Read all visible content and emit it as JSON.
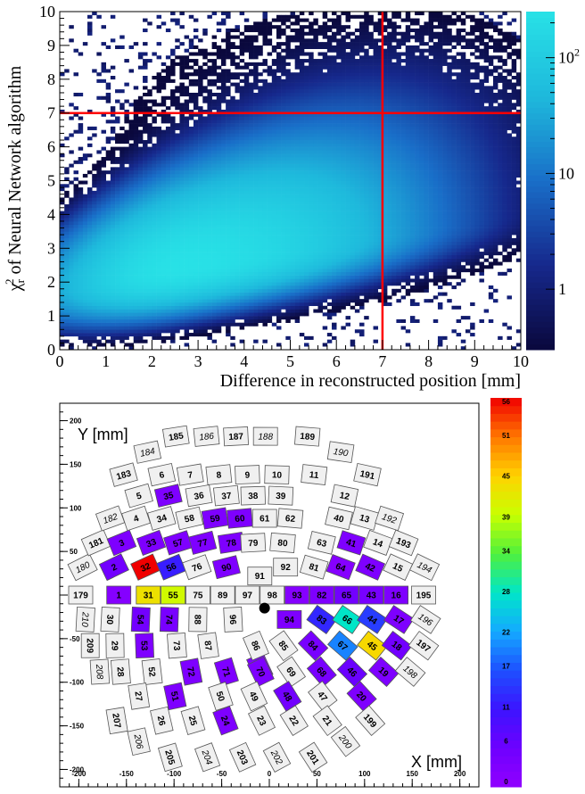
{
  "chart_data": [
    {
      "type": "heatmap",
      "xlabel": "Difference in reconstructed position [mm]",
      "ylabel_prefix": "χ",
      "ylabel_sub": "r",
      "ylabel_sup": "2",
      "ylabel_rest": " of  Neural Network algorithm",
      "xlim": [
        0,
        10
      ],
      "ylim": [
        0,
        10
      ],
      "x_ticks": [
        0,
        1,
        2,
        3,
        4,
        5,
        6,
        7,
        8,
        9,
        10
      ],
      "y_ticks": [
        0,
        1,
        2,
        3,
        4,
        5,
        6,
        7,
        8,
        9,
        10
      ],
      "log_color_scale": true,
      "z_range": [
        0.3,
        250
      ],
      "colorbar_ticks": [
        {
          "value": 1,
          "label": "1"
        },
        {
          "value": 10,
          "label": "10"
        },
        {
          "value": 100,
          "label": "10",
          "sup": "2"
        }
      ],
      "distribution": {
        "peak_x": 2.6,
        "peak_y": 2.4,
        "peak_density": 250
      },
      "cut_lines": {
        "x": 7,
        "y": 7,
        "color": "#ff0000"
      },
      "grid": false
    },
    {
      "type": "heatmap",
      "xlabel": "X [mm]",
      "ylabel": "Y [mm]",
      "xlim": [
        -220,
        220
      ],
      "ylim": [
        -220,
        220
      ],
      "x_ticks": [
        -200,
        -150,
        -100,
        -50,
        0,
        50,
        100,
        150,
        200
      ],
      "y_ticks": [
        -200,
        -150,
        -100,
        -50,
        0,
        50,
        100,
        150,
        200
      ],
      "colorbar_ticks": [
        0,
        6,
        11,
        17,
        22,
        28,
        34,
        39,
        45,
        51,
        56
      ],
      "z_range": [
        0,
        56
      ],
      "marker": {
        "x": -5,
        "y": -15
      },
      "rows": [
        {
          "y": 0,
          "cells": [
            {
              "id": "179",
              "x": -198,
              "v": null
            },
            {
              "id": "1",
              "x": -158,
              "v": 2
            },
            {
              "id": "31",
              "x": -127,
              "v": 43
            },
            {
              "id": "55",
              "x": -101,
              "v": 40
            },
            {
              "id": "75",
              "x": -75,
              "v": null
            },
            {
              "id": "89",
              "x": -49,
              "v": null
            },
            {
              "id": "97",
              "x": -23,
              "v": null
            },
            {
              "id": "98",
              "x": 3,
              "v": null
            },
            {
              "id": "93",
              "x": 29,
              "v": 2
            },
            {
              "id": "82",
              "x": 55,
              "v": 3
            },
            {
              "id": "65",
              "x": 81,
              "v": 5
            },
            {
              "id": "43",
              "x": 107,
              "v": 4
            },
            {
              "id": "16",
              "x": 133,
              "v": 3
            },
            {
              "id": "195",
              "x": 162,
              "v": null
            }
          ]
        },
        {
          "y": 32,
          "cells": [
            {
              "id": "180",
              "x": -196,
              "v": null,
              "italic": true
            },
            {
              "id": "2",
              "x": -163,
              "v": 5
            },
            {
              "id": "32",
              "x": -130,
              "v": 56
            },
            {
              "id": "56",
              "x": -103,
              "v": 12
            },
            {
              "id": "76",
              "x": -76,
              "v": null
            },
            {
              "id": "90",
              "x": -45,
              "v": 3
            },
            {
              "id": "91",
              "x": -10,
              "v": null,
              "dy": 10
            },
            {
              "id": "92",
              "x": 17,
              "v": null
            },
            {
              "id": "81",
              "x": 47,
              "v": null
            },
            {
              "id": "64",
              "x": 75,
              "v": 2
            },
            {
              "id": "42",
              "x": 106,
              "v": 3
            },
            {
              "id": "15",
              "x": 135,
              "v": null
            },
            {
              "id": "194",
              "x": 163,
              "v": null,
              "italic": true
            }
          ]
        },
        {
          "y": 60,
          "cells": [
            {
              "id": "181",
              "x": -182,
              "v": null
            },
            {
              "id": "3",
              "x": -155,
              "v": 3
            },
            {
              "id": "33",
              "x": -124,
              "v": 3
            },
            {
              "id": "57",
              "x": -96,
              "v": 3
            },
            {
              "id": "77",
              "x": -70,
              "v": 3
            },
            {
              "id": "78",
              "x": -40,
              "v": 3
            },
            {
              "id": "79",
              "x": -17,
              "v": null
            },
            {
              "id": "80",
              "x": 14,
              "v": null
            },
            {
              "id": "63",
              "x": 55,
              "v": null
            },
            {
              "id": "41",
              "x": 86,
              "v": 3
            },
            {
              "id": "14",
              "x": 114,
              "v": null
            },
            {
              "id": "193",
              "x": 141,
              "v": null
            }
          ]
        },
        {
          "y": 88,
          "cells": [
            {
              "id": "182",
              "x": -167,
              "v": null,
              "italic": true
            },
            {
              "id": "4",
              "x": -140,
              "v": null
            },
            {
              "id": "34",
              "x": -113,
              "v": null
            },
            {
              "id": "58",
              "x": -84,
              "v": null
            },
            {
              "id": "59",
              "x": -57,
              "v": 3
            },
            {
              "id": "60",
              "x": -31,
              "v": 3
            },
            {
              "id": "61",
              "x": -5,
              "v": null
            },
            {
              "id": "62",
              "x": 22,
              "v": null
            },
            {
              "id": "40",
              "x": 73,
              "v": null
            },
            {
              "id": "13",
              "x": 100,
              "v": null
            },
            {
              "id": "192",
              "x": 126,
              "v": null,
              "italic": true
            }
          ]
        },
        {
          "y": 114,
          "cells": [
            {
              "id": "5",
              "x": -137,
              "v": null
            },
            {
              "id": "35",
              "x": -106,
              "v": 3
            },
            {
              "id": "36",
              "x": -74,
              "v": null
            },
            {
              "id": "37",
              "x": -45,
              "v": null
            },
            {
              "id": "38",
              "x": -17,
              "v": null
            },
            {
              "id": "39",
              "x": 12,
              "v": null
            },
            {
              "id": "12",
              "x": 79,
              "v": null
            }
          ]
        },
        {
          "y": 138,
          "cells": [
            {
              "id": "183",
              "x": -153,
              "v": null
            },
            {
              "id": "6",
              "x": -113,
              "v": null
            },
            {
              "id": "7",
              "x": -83,
              "v": null
            },
            {
              "id": "8",
              "x": -53,
              "v": null
            },
            {
              "id": "9",
              "x": -23,
              "v": null
            },
            {
              "id": "10",
              "x": 8,
              "v": null
            },
            {
              "id": "11",
              "x": 47,
              "v": null
            },
            {
              "id": "191",
              "x": 103,
              "v": null
            }
          ]
        },
        {
          "y": 164,
          "cells": [
            {
              "id": "184",
              "x": -128,
              "v": null,
              "italic": true
            },
            {
              "id": "190",
              "x": 75,
              "v": null,
              "italic": true
            }
          ]
        },
        {
          "y": 182,
          "cells": [
            {
              "id": "185",
              "x": -98,
              "v": null
            },
            {
              "id": "186",
              "x": -66,
              "v": null,
              "italic": true
            },
            {
              "id": "187",
              "x": -35,
              "v": null
            },
            {
              "id": "188",
              "x": -4,
              "v": null,
              "italic": true
            },
            {
              "id": "189",
              "x": 40,
              "v": null
            }
          ]
        },
        {
          "y": -28,
          "cells": [
            {
              "id": "210",
              "x": -193,
              "v": null,
              "italic": true
            },
            {
              "id": "30",
              "x": -167,
              "v": null
            },
            {
              "id": "54",
              "x": -135,
              "v": 5
            },
            {
              "id": "74",
              "x": -105,
              "v": 4
            },
            {
              "id": "88",
              "x": -75,
              "v": null
            },
            {
              "id": "96",
              "x": -38,
              "v": null
            },
            {
              "id": "94",
              "x": 21,
              "v": 3
            },
            {
              "id": "83",
              "x": 55,
              "v": 13
            },
            {
              "id": "66",
              "x": 82,
              "v": 28
            },
            {
              "id": "44",
              "x": 108,
              "v": 15
            },
            {
              "id": "17",
              "x": 136,
              "v": 3
            },
            {
              "id": "196",
              "x": 164,
              "v": null,
              "italic": true
            }
          ]
        },
        {
          "y": -58,
          "cells": [
            {
              "id": "209",
              "x": -188,
              "v": null
            },
            {
              "id": "29",
              "x": -162,
              "v": null
            },
            {
              "id": "53",
              "x": -131,
              "v": 3
            },
            {
              "id": "73",
              "x": -97,
              "v": null
            },
            {
              "id": "87",
              "x": -64,
              "v": null
            },
            {
              "id": "95",
              "x": -10,
              "v": 3,
              "dy": 24
            },
            {
              "id": "86",
              "x": -14,
              "v": null
            },
            {
              "id": "85",
              "x": 15,
              "v": null
            },
            {
              "id": "84",
              "x": 46,
              "v": 4
            },
            {
              "id": "67",
              "x": 77,
              "v": 20
            },
            {
              "id": "45",
              "x": 108,
              "v": 44
            },
            {
              "id": "18",
              "x": 134,
              "v": 5
            },
            {
              "id": "197",
              "x": 162,
              "v": null
            }
          ]
        },
        {
          "y": -88,
          "cells": [
            {
              "id": "208",
              "x": -178,
              "v": null,
              "italic": true
            },
            {
              "id": "28",
              "x": -156,
              "v": null
            },
            {
              "id": "52",
              "x": -123,
              "v": null
            },
            {
              "id": "72",
              "x": -82,
              "v": 3
            },
            {
              "id": "71",
              "x": -45,
              "v": 3
            },
            {
              "id": "70",
              "x": -9,
              "v": 3
            },
            {
              "id": "69",
              "x": 23,
              "v": null
            },
            {
              "id": "68",
              "x": 55,
              "v": 4
            },
            {
              "id": "46",
              "x": 87,
              "v": 6
            },
            {
              "id": "19",
              "x": 120,
              "v": 3
            },
            {
              "id": "198",
              "x": 148,
              "v": null,
              "italic": true
            }
          ]
        },
        {
          "y": -116,
          "cells": [
            {
              "id": "27",
              "x": -137,
              "v": null
            },
            {
              "id": "51",
              "x": -99,
              "v": 3
            },
            {
              "id": "50",
              "x": -51,
              "v": null
            },
            {
              "id": "49",
              "x": -16,
              "v": null
            },
            {
              "id": "48",
              "x": 19,
              "v": 5
            },
            {
              "id": "47",
              "x": 56,
              "v": null
            },
            {
              "id": "20",
              "x": 97,
              "v": 3
            }
          ]
        },
        {
          "y": -144,
          "cells": [
            {
              "id": "207",
              "x": -160,
              "v": null
            },
            {
              "id": "26",
              "x": -113,
              "v": null
            },
            {
              "id": "25",
              "x": -80,
              "v": null
            },
            {
              "id": "24",
              "x": -46,
              "v": 3
            },
            {
              "id": "23",
              "x": -8,
              "v": null
            },
            {
              "id": "22",
              "x": 26,
              "v": null
            },
            {
              "id": "21",
              "x": 61,
              "v": null
            },
            {
              "id": "199",
              "x": 106,
              "v": null
            }
          ]
        },
        {
          "y": -168,
          "cells": [
            {
              "id": "206",
              "x": -137,
              "v": null,
              "italic": true
            },
            {
              "id": "200",
              "x": 80,
              "v": null,
              "italic": true
            }
          ]
        },
        {
          "y": -186,
          "cells": [
            {
              "id": "205",
              "x": -104,
              "v": null
            },
            {
              "id": "204",
              "x": -65,
              "v": null,
              "italic": true
            },
            {
              "id": "203",
              "x": -28,
              "v": null
            },
            {
              "id": "202",
              "x": 8,
              "v": null,
              "italic": true
            },
            {
              "id": "201",
              "x": 46,
              "v": null
            }
          ]
        }
      ]
    }
  ]
}
